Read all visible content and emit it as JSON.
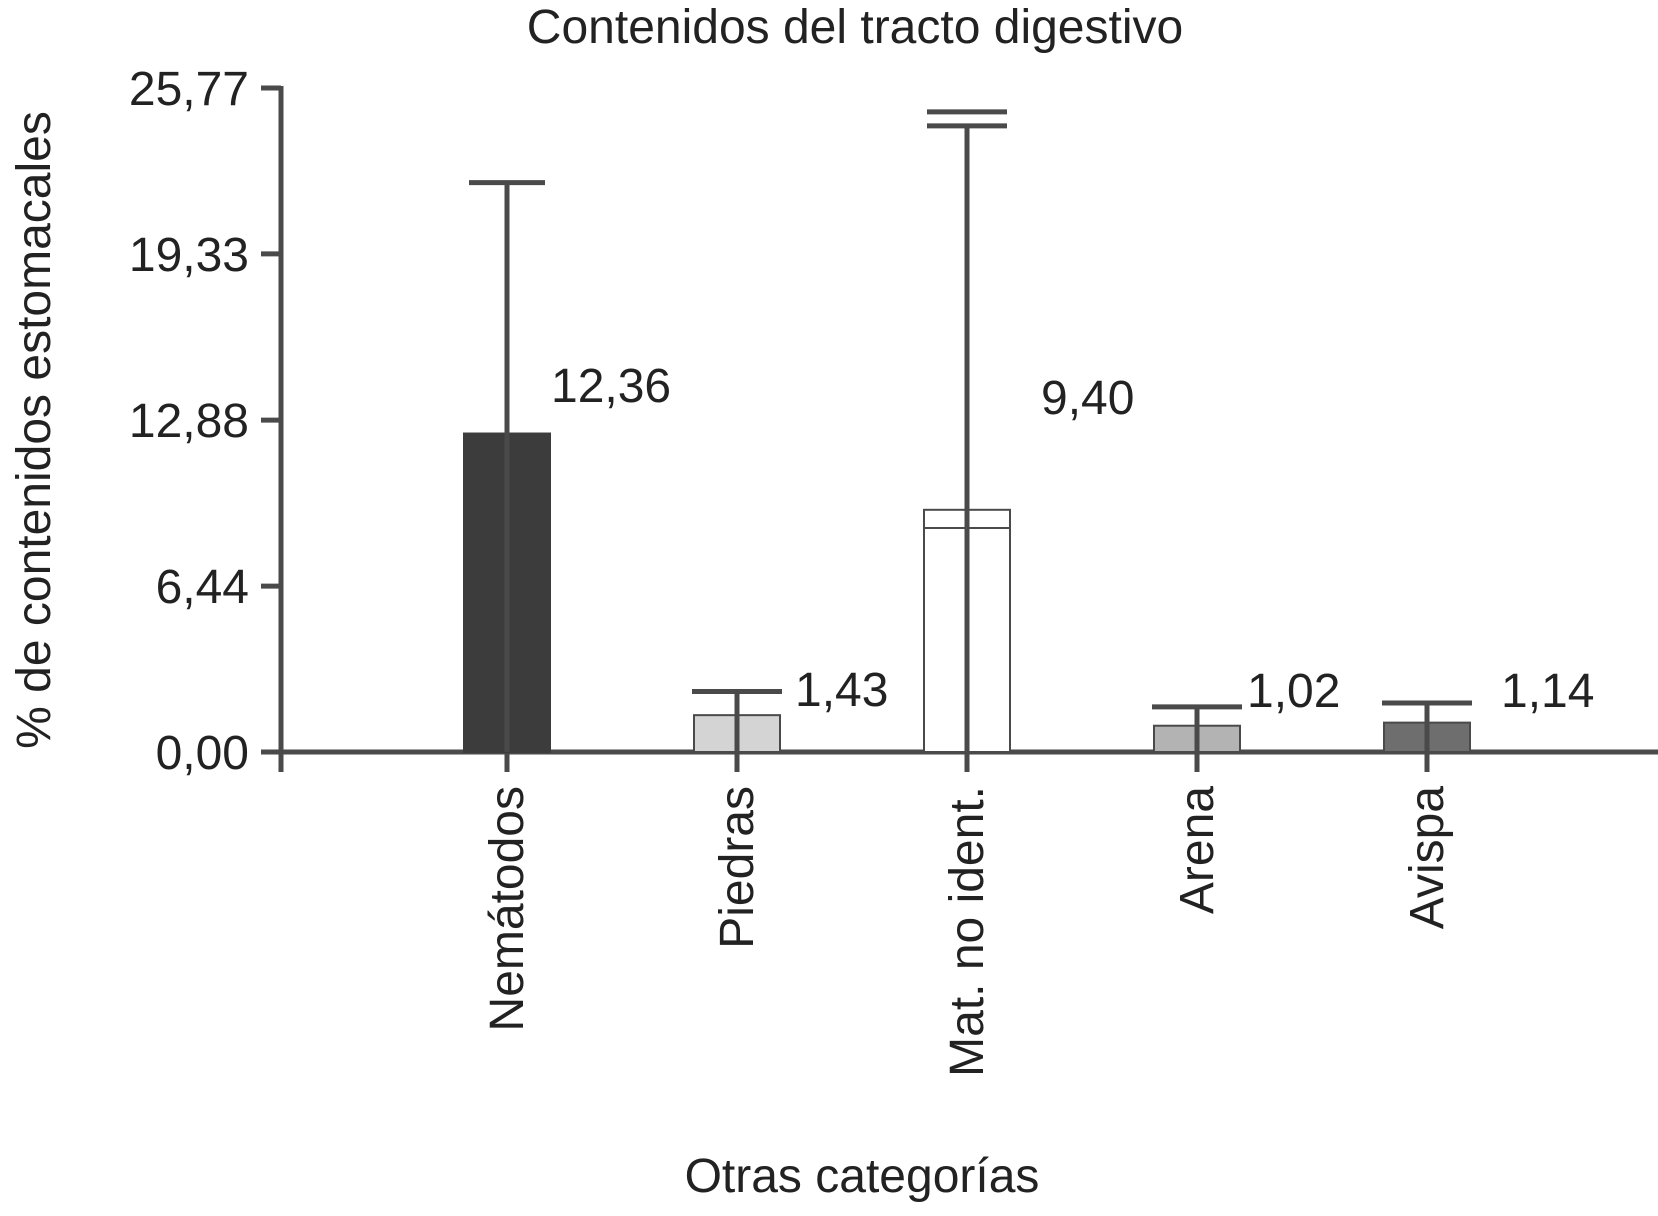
{
  "chart_data": {
    "type": "bar",
    "title": "Contenidos del tracto digestivo",
    "xlabel": "Otras categorías",
    "ylabel": "% de contenidos estomacales",
    "ylim": [
      0,
      25.77
    ],
    "yticks": [
      0,
      6.44,
      12.88,
      19.33,
      25.77
    ],
    "ytick_labels": [
      "0,00",
      "6,44",
      "12,88",
      "19,33",
      "25,77"
    ],
    "categories": [
      "Nemátodos",
      "Piedras",
      "Mat. no ident.",
      "Arena",
      "Avispa"
    ],
    "values": [
      12.36,
      1.43,
      9.4,
      1.02,
      1.14
    ],
    "value_labels": [
      "12,36",
      "1,43",
      "9,40",
      "1,02",
      "1,14"
    ],
    "error_upper": [
      22.1,
      2.35,
      24.3,
      1.75,
      1.9
    ],
    "colors": [
      "#3c3c3c",
      "#d4d4d4",
      "#ffffff",
      "#b3b3b3",
      "#6e6e6e"
    ],
    "grid": false,
    "legend": "none"
  }
}
